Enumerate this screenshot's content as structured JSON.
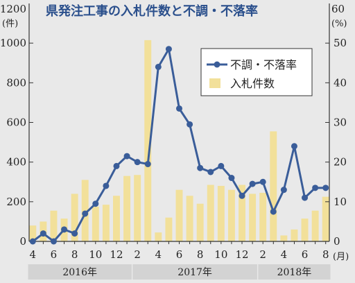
{
  "chart_data": {
    "type": "bar+line",
    "title": "県発注工事の入札件数と不調・不落率",
    "y_left": {
      "unit_top": "1200",
      "unit_label": "(件)",
      "ticks": [
        "1000",
        "800",
        "600",
        "400",
        "200",
        "0"
      ],
      "range": [
        0,
        1200
      ]
    },
    "y_right": {
      "unit_top": "60",
      "unit_label": "(%)",
      "ticks": [
        "50",
        "40",
        "30",
        "20",
        "10",
        "0"
      ],
      "range": [
        0,
        60
      ]
    },
    "x_tick_labels": [
      {
        "index": 0,
        "text": "4"
      },
      {
        "index": 2,
        "text": "6"
      },
      {
        "index": 4,
        "text": "8"
      },
      {
        "index": 6,
        "text": "10"
      },
      {
        "index": 8,
        "text": "12"
      },
      {
        "index": 10,
        "text": "2"
      },
      {
        "index": 12,
        "text": "4"
      },
      {
        "index": 14,
        "text": "6"
      },
      {
        "index": 16,
        "text": "8"
      },
      {
        "index": 18,
        "text": "10"
      },
      {
        "index": 20,
        "text": "12"
      },
      {
        "index": 22,
        "text": "2"
      },
      {
        "index": 24,
        "text": "4"
      },
      {
        "index": 26,
        "text": "6"
      },
      {
        "index": 28,
        "text": "8"
      }
    ],
    "x_unit": "(月)",
    "years": [
      {
        "label": "2016年",
        "start": 0,
        "end": 9
      },
      {
        "label": "2017年",
        "start": 10,
        "end": 21
      },
      {
        "label": "2018年",
        "start": 22,
        "end": 28
      }
    ],
    "legend": {
      "line": "不調・不落率",
      "bar": "入札件数",
      "position": "top-right"
    },
    "months": [
      "2016-04",
      "2016-05",
      "2016-06",
      "2016-07",
      "2016-08",
      "2016-09",
      "2016-10",
      "2016-11",
      "2016-12",
      "2017-01",
      "2017-02",
      "2017-03",
      "2017-04",
      "2017-05",
      "2017-06",
      "2017-07",
      "2017-08",
      "2017-09",
      "2017-10",
      "2017-11",
      "2017-12",
      "2018-01",
      "2018-02",
      "2018-03",
      "2018-04",
      "2018-05",
      "2018-06",
      "2018-07",
      "2018-08"
    ],
    "series": [
      {
        "kind": "bar",
        "axis": "left",
        "values": [
          80,
          100,
          155,
          115,
          240,
          310,
          175,
          185,
          230,
          330,
          335,
          1015,
          45,
          120,
          260,
          230,
          190,
          285,
          280,
          260,
          285,
          240,
          245,
          555,
          30,
          60,
          115,
          155,
          225
        ]
      },
      {
        "kind": "line",
        "axis": "right",
        "values": [
          0,
          2,
          0,
          3,
          2,
          7,
          9.5,
          14,
          19,
          21.5,
          20,
          19.5,
          44,
          48.5,
          33.5,
          29.5,
          18.5,
          17.5,
          19,
          16,
          11.5,
          14.5,
          15,
          7.5,
          13,
          24,
          11,
          13.5,
          13.5
        ]
      }
    ]
  },
  "colors": {
    "bar": "#f2e09a",
    "line": "#3a5d99",
    "background": "#e9e9e9",
    "title": "#2a4f8c"
  }
}
